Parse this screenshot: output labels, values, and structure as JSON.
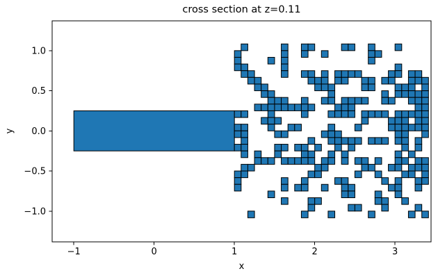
{
  "figure": {
    "title": "cross section at z=0.11",
    "xlabel": "x",
    "ylabel": "y"
  },
  "colors": {
    "fill": "#1f77b4",
    "edge": "#000000",
    "background": "#ffffff",
    "spine": "#000000"
  },
  "chart_data": {
    "type": "heatmap",
    "title": "cross section at z=0.11",
    "xlabel": "x",
    "ylabel": "y",
    "xlim": [
      -1.27,
      3.46
    ],
    "ylim": [
      -1.39,
      1.37
    ],
    "grid_on": false,
    "x_ticks": {
      "values": [
        -1,
        0,
        1,
        2,
        3
      ],
      "labels": [
        "−1",
        "0",
        "1",
        "2",
        "3"
      ]
    },
    "y_ticks": {
      "values": [
        1.0,
        0.5,
        0.0,
        -0.5,
        -1.0
      ],
      "labels": [
        "1.0",
        "0.5",
        "0.0",
        "−0.5",
        "−1.0"
      ]
    },
    "main_rect": {
      "x0": -1.0,
      "x1": 1.0,
      "y0": -0.25,
      "y1": 0.25
    },
    "cell_grid": {
      "origin_x": 1.0,
      "top_y": 1.08333,
      "cell_size": 0.08333,
      "n_cols": 29,
      "n_rows": 26,
      "note": "rows listed top to bottom; each entry = occupied column indices (col c spans x 1+c/12 .. 1+(c+1)/12)",
      "rows": [
        [
          1,
          7,
          10,
          11,
          16,
          17,
          20,
          24
        ],
        [
          0,
          7,
          10,
          13,
          20,
          21
        ],
        [
          0,
          5,
          7,
          20
        ],
        [
          0,
          1,
          7,
          24
        ],
        [
          1,
          2,
          7,
          10,
          11,
          13,
          15,
          16,
          17,
          18,
          23,
          24,
          26,
          27
        ],
        [
          2,
          3,
          11,
          12,
          13,
          15,
          16,
          19,
          20,
          22,
          23,
          26,
          27,
          28
        ],
        [
          3,
          4,
          12,
          13,
          14,
          19,
          20,
          24,
          25,
          26,
          28
        ],
        [
          4,
          5,
          14,
          22,
          24,
          25,
          26,
          27,
          28
        ],
        [
          5,
          6,
          7,
          10,
          13,
          14,
          16,
          17,
          18,
          19,
          22,
          23,
          26,
          27,
          28
        ],
        [
          3,
          4,
          5,
          6,
          7,
          8,
          9,
          10,
          11,
          15,
          16,
          17,
          27,
          28
        ],
        [
          0,
          1,
          5,
          10,
          14,
          15,
          16,
          17,
          19,
          20,
          21,
          22,
          24,
          25,
          26,
          27,
          28
        ],
        [
          4,
          5,
          6,
          19,
          23,
          24,
          25,
          27,
          28
        ],
        [
          0,
          1,
          5,
          8,
          9,
          14,
          18,
          23,
          24,
          25,
          26,
          27,
          28
        ],
        [
          0,
          1,
          6,
          7,
          13,
          14,
          15,
          24,
          25,
          28
        ],
        [
          1,
          11,
          14,
          15,
          16,
          17,
          18,
          20,
          21,
          22,
          24,
          25,
          27
        ],
        [
          0,
          1,
          6,
          7,
          9,
          10,
          12,
          15,
          17,
          25,
          27
        ],
        [
          1,
          3,
          6,
          10,
          11,
          14,
          16,
          24,
          26
        ],
        [
          3,
          4,
          5,
          7,
          8,
          9,
          10,
          11,
          13,
          14,
          16,
          18,
          19,
          21,
          24,
          25,
          27,
          28
        ],
        [
          1,
          2,
          12,
          13,
          19,
          20,
          23,
          24,
          26,
          27,
          28
        ],
        [
          0,
          1,
          11,
          12,
          18,
          21,
          25,
          26,
          28
        ],
        [
          0,
          7,
          10,
          15,
          16,
          22,
          24,
          27,
          28
        ],
        [
          0,
          7,
          9,
          10,
          13,
          16,
          17,
          23,
          24,
          27
        ],
        [
          5,
          16,
          17,
          21,
          24
        ],
        [
          7,
          11,
          12,
          21,
          22,
          25
        ],
        [
          11,
          17,
          18,
          22,
          27
        ],
        [
          2,
          10,
          14,
          20,
          26,
          28
        ]
      ]
    }
  }
}
